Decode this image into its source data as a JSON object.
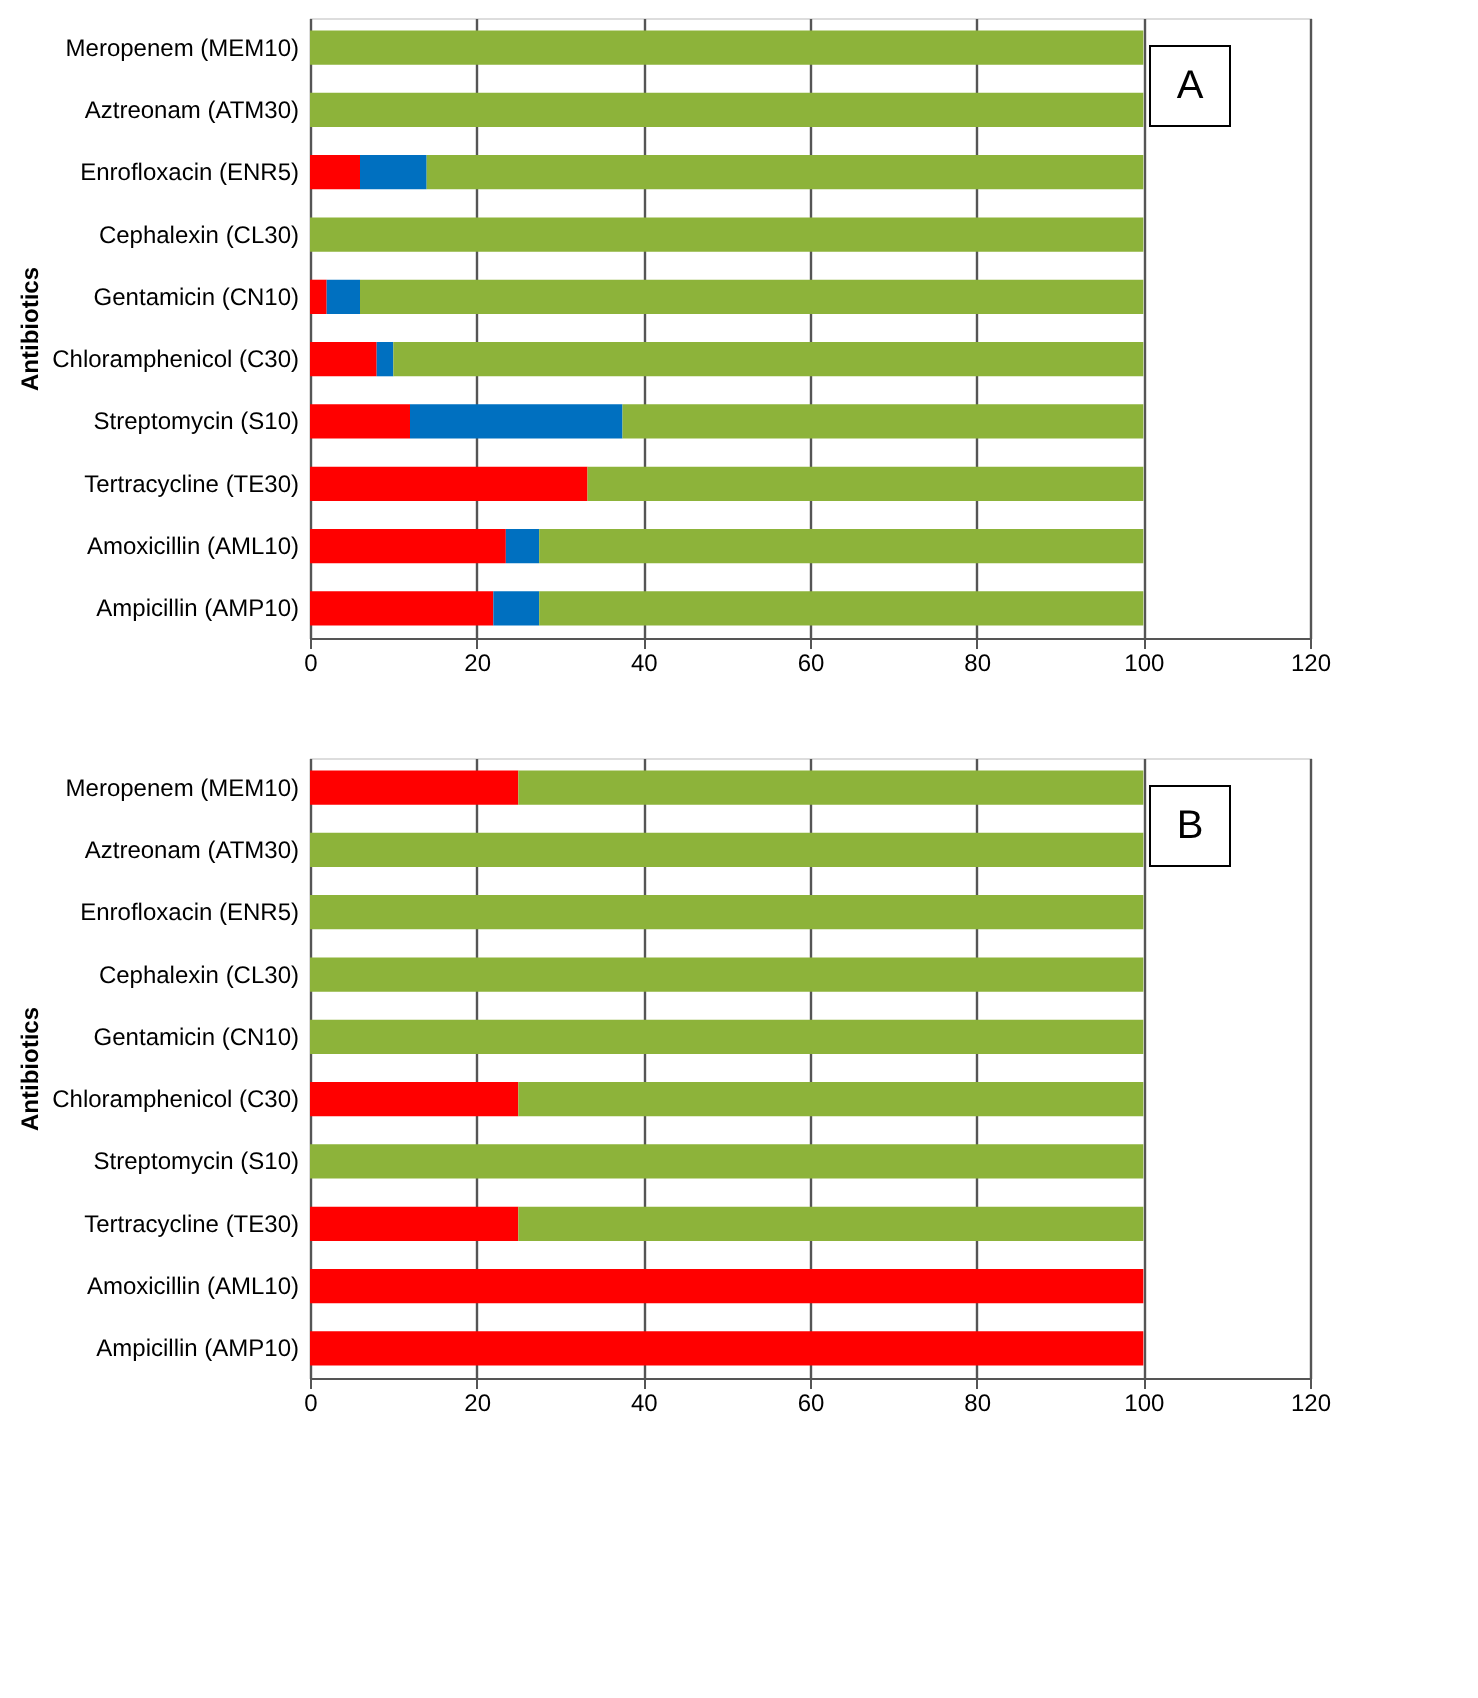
{
  "chart_data": [
    {
      "type": "bar",
      "orientation": "horizontal",
      "stacked": true,
      "ylabel": "Antibiotics",
      "annotations": [
        "A"
      ],
      "grid": "x",
      "xlim": [
        0,
        120
      ],
      "xticks": [
        0,
        20,
        40,
        60,
        80,
        100,
        120
      ],
      "categories": [
        "Meropenem (MEM10)",
        "Aztreonam (ATM30)",
        "Enrofloxacin (ENR5)",
        "Cephalexin (CL30)",
        "Gentamicin (CN10)",
        "Chloramphenicol (C30)",
        "Streptomycin (S10)",
        "Tertracycline (TE30)",
        "Amoxicillin (AML10)",
        "Ampicillin (AMP10)"
      ],
      "series": [
        {
          "color": "#ff0000",
          "values": [
            0,
            0,
            6,
            0,
            2,
            8,
            12,
            33.3,
            23.5,
            22
          ]
        },
        {
          "color": "#0070c0",
          "values": [
            0,
            0,
            8,
            0,
            4,
            2,
            25.5,
            0,
            4,
            5.5
          ]
        },
        {
          "color": "#8db33a",
          "values": [
            100,
            100,
            86,
            100,
            94,
            90,
            62.5,
            66.7,
            72.5,
            72.5
          ]
        }
      ]
    },
    {
      "type": "bar",
      "orientation": "horizontal",
      "stacked": true,
      "ylabel": "Antibiotics",
      "annotations": [
        "B"
      ],
      "grid": "x",
      "xlim": [
        0,
        120
      ],
      "xticks": [
        0,
        20,
        40,
        60,
        80,
        100,
        120
      ],
      "categories": [
        "Meropenem (MEM10)",
        "Aztreonam (ATM30)",
        "Enrofloxacin (ENR5)",
        "Cephalexin (CL30)",
        "Gentamicin (CN10)",
        "Chloramphenicol (C30)",
        "Streptomycin (S10)",
        "Tertracycline (TE30)",
        "Amoxicillin (AML10)",
        "Ampicillin (AMP10)"
      ],
      "series": [
        {
          "color": "#ff0000",
          "values": [
            25,
            0,
            0,
            0,
            0,
            25,
            0,
            25,
            100,
            100
          ]
        },
        {
          "color": "#8db33a",
          "values": [
            75,
            100,
            100,
            100,
            100,
            75,
            100,
            75,
            0,
            0
          ]
        }
      ]
    }
  ]
}
